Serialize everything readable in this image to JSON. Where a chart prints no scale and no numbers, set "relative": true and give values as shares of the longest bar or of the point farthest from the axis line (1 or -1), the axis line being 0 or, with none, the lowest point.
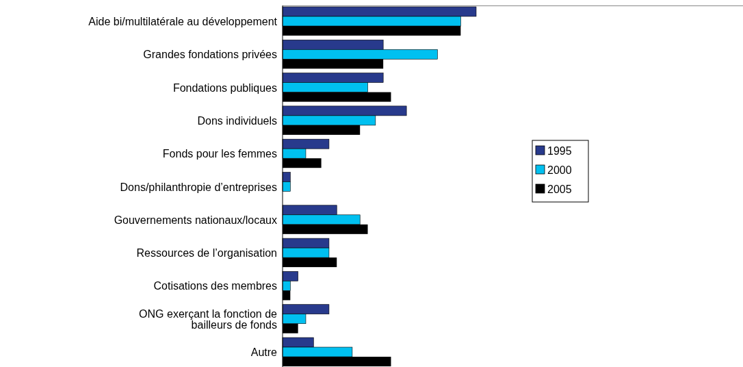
{
  "chart_data": {
    "type": "bar",
    "orientation": "horizontal",
    "relative": true,
    "legend": "right",
    "categories": [
      "Aide bi/multilatérale au développement",
      "Grandes fondations privées",
      "Fondations publiques",
      "Dons individuels",
      "Fonds pour les femmes",
      "Dons/philanthropie d’entreprises",
      "Gouvernements nationaux/locaux",
      "Ressources de l’organisation",
      "Cotisations des membres",
      "ONG exerçant la fonction de\nbailleurs de fonds",
      "Autre"
    ],
    "series": [
      {
        "name": "1995",
        "color": "#283a8c",
        "values": [
          1,
          0.52,
          0.52,
          0.64,
          0.24,
          0.04,
          0.28,
          0.24,
          0.08,
          0.24,
          0.16
        ]
      },
      {
        "name": "2000",
        "color": "#00c0f0",
        "values": [
          0.92,
          0.8,
          0.44,
          0.48,
          0.12,
          0.04,
          0.4,
          0.24,
          0.04,
          0.12,
          0.36
        ]
      },
      {
        "name": "2005",
        "color": "#000000",
        "values": [
          0.92,
          0.52,
          0.56,
          0.4,
          0.2,
          0,
          0.44,
          0.28,
          0.04,
          0.08,
          0.56
        ]
      }
    ]
  }
}
